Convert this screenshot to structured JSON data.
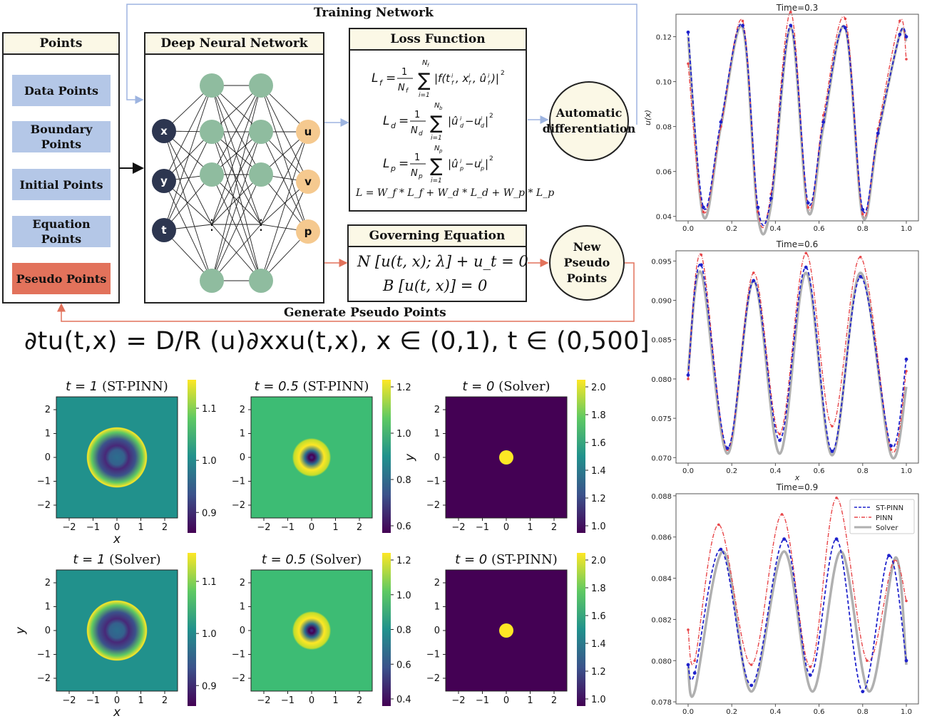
{
  "diagram": {
    "training_network_label": "Training Network",
    "generate_pseudo_label": "Generate Pseudo Points",
    "points_panel": {
      "header": "Points",
      "items": [
        "Data Points",
        "Boundary Points",
        "Initial Points",
        "Equation Points",
        "Pseudo Points"
      ]
    },
    "dnn_panel": {
      "header": "Deep Neural Network",
      "inputs": [
        "x",
        "y",
        "t"
      ],
      "outputs": [
        "u",
        "v",
        "p"
      ],
      "ellipsis": "⋮"
    },
    "loss_panel": {
      "header": "Loss Function",
      "eq_total": "L = W_f * L_f + W_d * L_d + W_p * L_p"
    },
    "governing_panel": {
      "header": "Governing Equation",
      "eq1": "N [u(t, x); λ] + u_t = 0",
      "eq2": "B [u(t, x)] = 0"
    },
    "auto_diff": "Automatic differentiation",
    "new_pseudo": "New Pseudo Points"
  },
  "pde_equation": "∂tu(t,x) = D/R (u)∂xxu(t,x), x ∈ (0,1), t ∈ (0,500]",
  "heatmaps": [
    {
      "time": "t = 1",
      "method": "(ST-PINN)",
      "colorbar_ticks": [
        "1.1",
        "1.0",
        "0.9"
      ],
      "pattern": "ring",
      "xlabel": "x",
      "ylabel": ""
    },
    {
      "time": "t = 0.5",
      "method": "(ST-PINN)",
      "colorbar_ticks": [
        "1.2",
        "1.0",
        "0.8",
        "0.6"
      ],
      "pattern": "small-ring",
      "xlabel": "",
      "ylabel": ""
    },
    {
      "time": "t = 0",
      "method": "(Solver)",
      "colorbar_ticks": [
        "2.0",
        "1.8",
        "1.6",
        "1.4",
        "1.2",
        "1.0"
      ],
      "pattern": "dot",
      "xlabel": "",
      "ylabel": "y"
    },
    {
      "time": "t = 1",
      "method": "(Solver)",
      "colorbar_ticks": [
        "1.1",
        "1.0",
        "0.9"
      ],
      "pattern": "ring",
      "xlabel": "x",
      "ylabel": "y"
    },
    {
      "time": "t = 0.5",
      "method": "(Solver)",
      "colorbar_ticks": [
        "1.2",
        "1.0",
        "0.8",
        "0.6",
        "0.4"
      ],
      "pattern": "small-ring",
      "xlabel": "",
      "ylabel": ""
    },
    {
      "time": "t = 0",
      "method": "(ST-PINN)",
      "colorbar_ticks": [
        "2.0",
        "1.8",
        "1.6",
        "1.4",
        "1.2",
        "1.0"
      ],
      "pattern": "dot",
      "xlabel": "",
      "ylabel": ""
    }
  ],
  "heatmap_axis_ticks": [
    "−2",
    "−1",
    "0",
    "1",
    "2"
  ],
  "colors": {
    "points_blue": "#b4c7e7",
    "pseudo_orange": "#e2725b",
    "header_cream": "#fbf8e6",
    "node_green": "#8fbc9f",
    "node_dark": "#2d3650",
    "node_orange": "#f5c98f",
    "st_pinn": "#1f22cc",
    "pinn": "#e8474a",
    "solver": "#b0b0b0"
  },
  "chart_data": [
    {
      "type": "line",
      "title": "Time=0.3",
      "xlabel": "",
      "ylabel": "u(x)",
      "xlim": [
        0,
        1
      ],
      "ylim": [
        0.038,
        0.13
      ],
      "xticks": [
        "0.0",
        "0.2",
        "0.4",
        "0.6",
        "0.8",
        "1.0"
      ],
      "yticks": [
        0.04,
        0.06,
        0.08,
        0.1,
        0.12
      ],
      "ytick_labels": [
        "0.04",
        "0.06",
        "0.08",
        "0.10",
        "0.12"
      ],
      "series": [
        {
          "name": "ST-PINN",
          "x": [
            0.0,
            0.07,
            0.15,
            0.25,
            0.32,
            0.38,
            0.47,
            0.55,
            0.62,
            0.72,
            0.8,
            0.87,
            0.97,
            1.0
          ],
          "y": [
            0.122,
            0.044,
            0.082,
            0.125,
            0.044,
            0.048,
            0.125,
            0.046,
            0.082,
            0.124,
            0.043,
            0.077,
            0.121,
            0.12
          ]
        },
        {
          "name": "PINN",
          "x": [
            0.0,
            0.07,
            0.15,
            0.25,
            0.32,
            0.38,
            0.47,
            0.55,
            0.62,
            0.72,
            0.8,
            0.87,
            0.97,
            1.0
          ],
          "y": [
            0.108,
            0.042,
            0.08,
            0.127,
            0.042,
            0.05,
            0.131,
            0.044,
            0.085,
            0.128,
            0.041,
            0.079,
            0.127,
            0.11
          ]
        },
        {
          "name": "Solver",
          "x": [
            0.0,
            0.07,
            0.15,
            0.25,
            0.32,
            0.38,
            0.47,
            0.55,
            0.62,
            0.72,
            0.8,
            0.87,
            0.97,
            1.0
          ],
          "y": [
            0.12,
            0.04,
            0.08,
            0.124,
            0.04,
            0.045,
            0.124,
            0.042,
            0.08,
            0.124,
            0.04,
            0.076,
            0.121,
            0.118
          ]
        }
      ]
    },
    {
      "type": "line",
      "title": "Time=0.6",
      "xlabel": "x",
      "ylabel": "",
      "xlim": [
        0,
        1
      ],
      "ylim": [
        0.0693,
        0.0963
      ],
      "xticks": [
        "0.0",
        "0.2",
        "0.4",
        "0.6",
        "0.8",
        "1.0"
      ],
      "yticks": [
        0.07,
        0.075,
        0.08,
        0.085,
        0.09,
        0.095
      ],
      "ytick_labels": [
        "0.070",
        "0.075",
        "0.080",
        "0.085",
        "0.090",
        "0.095"
      ],
      "series": [
        {
          "name": "ST-PINN",
          "x": [
            0.0,
            0.06,
            0.18,
            0.3,
            0.42,
            0.54,
            0.66,
            0.79,
            0.93,
            1.0
          ],
          "y": [
            0.0805,
            0.0945,
            0.0712,
            0.0925,
            0.0722,
            0.0942,
            0.0708,
            0.093,
            0.0715,
            0.0825
          ]
        },
        {
          "name": "PINN",
          "x": [
            0.0,
            0.06,
            0.18,
            0.3,
            0.42,
            0.54,
            0.66,
            0.79,
            0.93,
            1.0
          ],
          "y": [
            0.08,
            0.0958,
            0.071,
            0.0935,
            0.073,
            0.096,
            0.074,
            0.0955,
            0.071,
            0.081
          ]
        },
        {
          "name": "Solver",
          "x": [
            0.0,
            0.06,
            0.18,
            0.3,
            0.42,
            0.54,
            0.66,
            0.79,
            0.93,
            1.0
          ],
          "y": [
            0.081,
            0.0935,
            0.0705,
            0.0925,
            0.0705,
            0.0935,
            0.0703,
            0.0935,
            0.0703,
            0.079
          ]
        }
      ]
    },
    {
      "type": "line",
      "title": "Time=0.9",
      "xlabel": "",
      "ylabel": "",
      "xlim": [
        0,
        1
      ],
      "ylim": [
        0.0779,
        0.0881
      ],
      "xticks": [
        "0.0",
        "0.2",
        "0.4",
        "0.6",
        "0.8",
        "1.0"
      ],
      "yticks": [
        0.078,
        0.08,
        0.082,
        0.084,
        0.086,
        0.088
      ],
      "ytick_labels": [
        "0.078",
        "0.080",
        "0.082",
        "0.084",
        "0.086",
        "0.088"
      ],
      "legend": "top-right",
      "series": [
        {
          "name": "ST-PINN",
          "x": [
            0.0,
            0.03,
            0.15,
            0.29,
            0.44,
            0.56,
            0.68,
            0.8,
            0.92,
            1.0
          ],
          "y": [
            0.0798,
            0.0794,
            0.0854,
            0.0788,
            0.0859,
            0.0793,
            0.0859,
            0.0785,
            0.0851,
            0.08
          ]
        },
        {
          "name": "PINN",
          "x": [
            0.0,
            0.03,
            0.14,
            0.29,
            0.43,
            0.56,
            0.68,
            0.82,
            0.94,
            1.0
          ],
          "y": [
            0.0815,
            0.08,
            0.0866,
            0.0798,
            0.0871,
            0.0797,
            0.0879,
            0.08,
            0.0848,
            0.0829
          ]
        },
        {
          "name": "Solver",
          "x": [
            0.0,
            0.03,
            0.16,
            0.29,
            0.44,
            0.57,
            0.7,
            0.83,
            0.95,
            1.0
          ],
          "y": [
            0.0797,
            0.0785,
            0.0853,
            0.0785,
            0.0853,
            0.0785,
            0.0853,
            0.0785,
            0.085,
            0.0798
          ]
        }
      ]
    }
  ]
}
